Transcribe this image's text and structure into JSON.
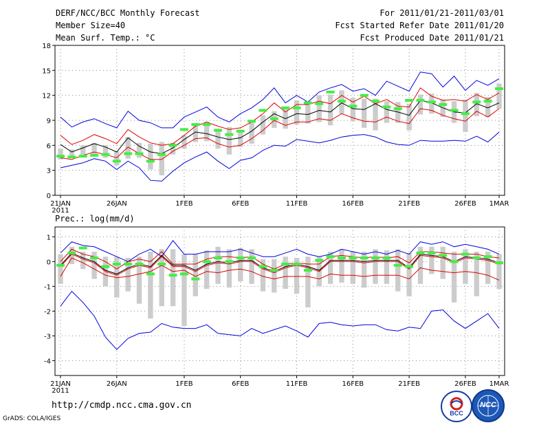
{
  "header": {
    "line1_left": "DERF/NCC/BCC Monthly Forecast",
    "line2_left": "Member Size=40",
    "line3_left": "Mean Surf. Temp.: °C",
    "line1_right": "For 2011/01/21-2011/03/01",
    "line2_right": "Fcst Started Refer Date 2011/01/20",
    "line3_right": "Fcst Produced Date 2011/01/21"
  },
  "footer": {
    "url": "http://cmdp.ncc.cma.gov.cn",
    "credit": "GrADS: COLA/IGES",
    "logo1_text": "BCC",
    "logo2_text": "NCC"
  },
  "colors": {
    "blue": "#0000dd",
    "red": "#dd0000",
    "black": "#000000",
    "box": "#cccccc",
    "green": "#44ee44"
  },
  "chart_data": [
    {
      "type": "line",
      "title": "Mean Surf. Temp.: °C",
      "ylim": [
        0,
        18
      ],
      "yticks": [
        0,
        3,
        6,
        9,
        12,
        15,
        18
      ],
      "xtick_labels": [
        "21JAN",
        "26JAN",
        "1FEB",
        "6FEB",
        "11FEB",
        "16FEB",
        "21FEB",
        "26FEB",
        "1MAR"
      ],
      "xtick_days": [
        0,
        5,
        11,
        16,
        21,
        26,
        31,
        36,
        39
      ],
      "year_label": "2011",
      "days": 40,
      "series": [
        {
          "name": "max",
          "color": "#0000dd",
          "values": [
            9.4,
            8.2,
            8.8,
            9.2,
            8.6,
            8.1,
            10.1,
            9.0,
            8.7,
            8.1,
            8.1,
            9.4,
            10.0,
            10.6,
            9.4,
            8.8,
            9.8,
            10.5,
            11.5,
            12.9,
            11.1,
            12.0,
            11.2,
            12.4,
            12.9,
            13.3,
            12.5,
            12.8,
            12.0,
            13.7,
            13.1,
            12.5,
            14.8,
            14.6,
            13.0,
            14.3,
            12.6,
            13.8,
            13.2,
            14.0
          ]
        },
        {
          "name": "upper",
          "color": "#dd0000",
          "values": [
            7.2,
            6.1,
            6.6,
            7.3,
            6.8,
            6.2,
            7.9,
            7.0,
            6.3,
            6.0,
            6.2,
            7.2,
            8.3,
            8.8,
            8.3,
            7.9,
            8.1,
            8.8,
            9.8,
            11.1,
            10.0,
            10.9,
            10.9,
            11.3,
            11.0,
            12.0,
            11.2,
            11.9,
            11.0,
            11.5,
            10.7,
            10.6,
            12.9,
            11.9,
            11.4,
            11.5,
            11.3,
            12.1,
            11.5,
            12.3
          ]
        },
        {
          "name": "mean",
          "color": "#000000",
          "values": [
            6.1,
            5.2,
            5.7,
            6.2,
            5.8,
            5.2,
            6.9,
            5.9,
            5.2,
            5.0,
            5.7,
            6.7,
            7.6,
            7.4,
            7.0,
            6.7,
            6.9,
            7.7,
            8.8,
            9.8,
            9.2,
            9.8,
            9.7,
            10.2,
            10.0,
            11.1,
            10.4,
            10.3,
            11.0,
            10.3,
            10.0,
            9.6,
            11.4,
            11.1,
            10.5,
            10.0,
            9.9,
            11.0,
            10.5,
            11.1
          ]
        },
        {
          "name": "lower",
          "color": "#dd0000",
          "values": [
            4.5,
            4.3,
            4.8,
            5.2,
            4.9,
            4.5,
            5.8,
            5.0,
            4.3,
            4.3,
            5.3,
            6.0,
            6.8,
            6.9,
            6.2,
            5.8,
            6.0,
            6.8,
            7.8,
            9.0,
            8.4,
            8.8,
            8.8,
            9.2,
            9.0,
            9.8,
            9.3,
            8.9,
            8.8,
            9.4,
            8.9,
            8.6,
            10.4,
            10.2,
            9.6,
            9.2,
            8.9,
            10.1,
            9.4,
            10.4
          ]
        },
        {
          "name": "min",
          "color": "#0000dd",
          "values": [
            3.3,
            3.6,
            3.9,
            4.4,
            4.1,
            3.1,
            4.1,
            3.3,
            1.8,
            1.7,
            2.9,
            3.9,
            4.6,
            5.2,
            4.1,
            3.2,
            4.2,
            4.5,
            5.4,
            6.0,
            5.9,
            6.7,
            6.5,
            6.3,
            6.6,
            7.0,
            7.2,
            7.3,
            7.0,
            6.4,
            6.1,
            6.0,
            6.6,
            6.5,
            6.5,
            6.6,
            6.5,
            7.1,
            6.4,
            7.6
          ]
        }
      ],
      "box_low": [
        4.3,
        4.5,
        4.7,
        4.8,
        4.5,
        3.6,
        4.4,
        4.5,
        3.1,
        2.4,
        4.9,
        5.6,
        6.4,
        6.5,
        5.6,
        4.9,
        5.8,
        6.2,
        7.3,
        8.1,
        8.0,
        8.5,
        8.6,
        8.8,
        8.4,
        9.8,
        8.9,
        8.1,
        7.8,
        8.7,
        8.7,
        7.8,
        9.7,
        9.8,
        9.4,
        8.7,
        7.6,
        9.5,
        9.4,
        10.4
      ],
      "box_high": [
        5.6,
        5.5,
        6.0,
        6.3,
        6.0,
        5.3,
        7.0,
        6.3,
        6.2,
        6.4,
        6.3,
        7.2,
        8.4,
        8.8,
        8.0,
        8.2,
        7.9,
        8.9,
        9.6,
        10.1,
        10.4,
        11.4,
        11.3,
        12.0,
        12.1,
        12.6,
        11.7,
        11.6,
        11.6,
        11.3,
        11.2,
        11.0,
        12.1,
        12.2,
        11.5,
        11.3,
        11.5,
        12.3,
        11.8,
        13.4
      ],
      "observed": [
        4.7,
        4.6,
        4.7,
        4.8,
        4.9,
        4.1,
        5.0,
        5.0,
        4.1,
        4.9,
        6.0,
        7.9,
        8.5,
        8.5,
        7.8,
        7.3,
        7.7,
        8.9,
        10.2,
        9.2,
        10.5,
        10.5,
        11.1,
        11.0,
        12.4,
        11.3,
        10.7,
        12.0,
        11.3,
        10.6,
        10.4,
        11.4,
        11.4,
        11.2,
        10.9,
        10.2,
        9.8,
        11.2,
        11.3,
        12.8
      ]
    },
    {
      "type": "line",
      "title": "Prec.: log(mm/d)",
      "ylim": [
        -4.6,
        1.4
      ],
      "yticks": [
        -4,
        -3,
        -2,
        -1,
        0,
        1
      ],
      "xtick_labels": [
        "21JAN",
        "26JAN",
        "1FEB",
        "6FEB",
        "11FEB",
        "16FEB",
        "21FEB",
        "26FEB",
        "1MAR"
      ],
      "xtick_days": [
        0,
        5,
        11,
        16,
        21,
        26,
        31,
        36,
        39
      ],
      "year_label": "2011",
      "days": 40,
      "series": [
        {
          "name": "max",
          "color": "#0000dd",
          "values": [
            0.35,
            0.8,
            0.65,
            0.6,
            0.4,
            0.2,
            0.0,
            0.3,
            0.5,
            0.2,
            0.85,
            0.3,
            0.3,
            0.4,
            0.4,
            0.4,
            0.5,
            0.35,
            0.2,
            0.2,
            0.35,
            0.5,
            0.3,
            0.2,
            0.3,
            0.5,
            0.4,
            0.3,
            0.4,
            0.3,
            0.45,
            0.3,
            0.8,
            0.7,
            0.8,
            0.6,
            0.7,
            0.6,
            0.5,
            0.3
          ]
        },
        {
          "name": "upper",
          "color": "#dd0000",
          "values": [
            0.0,
            0.5,
            0.3,
            0.2,
            0.0,
            -0.3,
            0.0,
            0.1,
            0.0,
            0.4,
            -0.1,
            -0.1,
            -0.1,
            0.1,
            0.2,
            0.2,
            0.15,
            0.2,
            -0.1,
            -0.3,
            -0.1,
            -0.05,
            -0.1,
            -0.1,
            0.2,
            0.25,
            0.2,
            0.15,
            0.2,
            0.15,
            0.2,
            -0.05,
            0.4,
            0.4,
            0.35,
            0.3,
            0.3,
            0.3,
            0.2,
            0.15
          ]
        },
        {
          "name": "mean",
          "color": "#000000",
          "values": [
            -0.15,
            0.35,
            0.15,
            0.0,
            -0.35,
            -0.5,
            -0.25,
            -0.1,
            -0.2,
            0.25,
            -0.15,
            -0.15,
            -0.35,
            -0.1,
            0.0,
            -0.05,
            0.05,
            0.05,
            -0.25,
            -0.4,
            -0.2,
            -0.1,
            -0.2,
            -0.35,
            0.05,
            0.05,
            0.05,
            0.0,
            0.05,
            0.05,
            0.05,
            -0.25,
            0.3,
            0.25,
            0.2,
            0.0,
            0.2,
            0.15,
            0.1,
            -0.05
          ]
        },
        {
          "name": "lower",
          "color": "#dd0000",
          "values": [
            -0.6,
            0.15,
            -0.05,
            -0.3,
            -0.55,
            -0.65,
            -0.6,
            -0.5,
            -0.4,
            -0.15,
            -0.4,
            -0.35,
            -0.6,
            -0.4,
            -0.45,
            -0.35,
            -0.3,
            -0.4,
            -0.6,
            -0.7,
            -0.6,
            -0.6,
            -0.6,
            -0.7,
            -0.5,
            -0.55,
            -0.55,
            -0.6,
            -0.55,
            -0.55,
            -0.55,
            -0.7,
            -0.25,
            -0.35,
            -0.4,
            -0.45,
            -0.4,
            -0.45,
            -0.55,
            -0.75
          ]
        },
        {
          "name": "min",
          "color": "#0000dd",
          "values": [
            -1.8,
            -1.2,
            -1.65,
            -2.2,
            -3.05,
            -3.55,
            -3.1,
            -2.9,
            -2.85,
            -2.5,
            -2.65,
            -2.7,
            -2.7,
            -2.55,
            -2.9,
            -2.95,
            -3.0,
            -2.7,
            -2.9,
            -2.75,
            -2.6,
            -2.8,
            -3.05,
            -2.5,
            -2.45,
            -2.55,
            -2.6,
            -2.55,
            -2.55,
            -2.75,
            -2.8,
            -2.65,
            -2.7,
            -2.0,
            -1.95,
            -2.4,
            -2.7,
            -2.4,
            -2.1,
            -2.7
          ]
        },
        {
          "name": "ens_median",
          "color": "#dd0000",
          "values": [
            -0.2,
            0.3,
            0.1,
            -0.05,
            -0.4,
            -0.55,
            -0.3,
            -0.15,
            -0.25,
            0.2,
            -0.2,
            -0.2,
            -0.4,
            -0.15,
            -0.05,
            -0.1,
            0.0,
            0.0,
            -0.3,
            -0.45,
            -0.25,
            -0.15,
            -0.25,
            -0.4,
            0.0,
            0.0,
            0.0,
            -0.05,
            0.0,
            0.0,
            0.0,
            -0.3,
            0.25,
            0.2,
            0.15,
            -0.05,
            0.15,
            0.1,
            0.05,
            -0.1
          ]
        }
      ],
      "box_low": [
        -0.9,
        -0.1,
        -0.3,
        -0.7,
        -1.0,
        -1.45,
        -1.2,
        -1.7,
        -2.3,
        -1.8,
        -1.8,
        -2.6,
        -1.4,
        -1.1,
        -0.9,
        -1.05,
        -0.8,
        -0.9,
        -1.2,
        -1.25,
        -1.1,
        -1.3,
        -1.85,
        -1.0,
        -0.9,
        -0.85,
        -0.9,
        -1.05,
        -0.9,
        -0.9,
        -1.2,
        -1.4,
        -0.9,
        -0.5,
        -0.7,
        -1.65,
        -0.9,
        -1.4,
        -0.9,
        -1.1
      ],
      "box_high": [
        0.3,
        0.6,
        0.4,
        0.4,
        0.2,
        0.2,
        0.15,
        0.2,
        0.4,
        0.5,
        0.5,
        0.3,
        0.3,
        0.45,
        0.6,
        0.5,
        0.55,
        0.5,
        0.1,
        0.1,
        0.2,
        0.15,
        0.2,
        0.2,
        0.4,
        0.5,
        0.4,
        0.4,
        0.5,
        0.45,
        0.5,
        0.35,
        0.6,
        0.6,
        0.6,
        0.4,
        0.5,
        0.4,
        0.4,
        0.3
      ],
      "observed": [
        -0.15,
        0.35,
        0.55,
        0.15,
        -0.2,
        -0.1,
        -0.1,
        -0.1,
        -0.5,
        -0.1,
        -0.55,
        -0.5,
        -0.7,
        0.0,
        0.15,
        0.0,
        0.15,
        0.15,
        -0.2,
        -0.35,
        -0.1,
        -0.1,
        -0.35,
        0.05,
        0.2,
        0.15,
        0.15,
        0.15,
        0.15,
        0.15,
        -0.15,
        -0.2,
        0.35,
        0.35,
        0.25,
        0.0,
        0.3,
        0.15,
        0.2,
        -0.05
      ]
    }
  ]
}
